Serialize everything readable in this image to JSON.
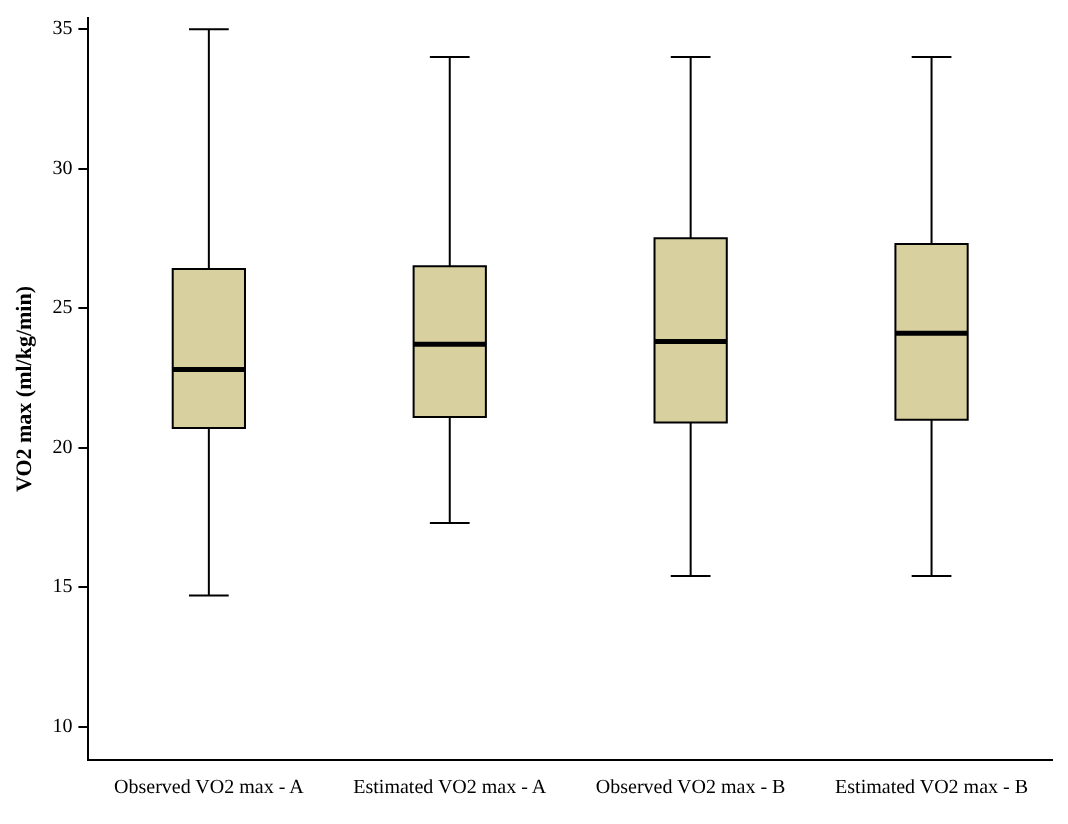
{
  "chart_data": {
    "type": "box",
    "ylabel": "VO2 max (ml/kg/min)",
    "categories": [
      "Observed VO2 max - A",
      "Estimated VO2 max - A",
      "Observed VO2 max - B",
      "Estimated VO2 max - B"
    ],
    "color": "#d8d09e",
    "boxes": [
      {
        "low": 14.7,
        "q1": 20.7,
        "median": 22.8,
        "q3": 26.4,
        "high": 35
      },
      {
        "low": 17.3,
        "q1": 21.1,
        "median": 23.7,
        "q3": 26.5,
        "high": 34
      },
      {
        "low": 15.4,
        "q1": 20.9,
        "median": 23.8,
        "q3": 27.5,
        "high": 34
      },
      {
        "low": 15.4,
        "q1": 21.0,
        "median": 24.1,
        "q3": 27.3,
        "high": 34
      }
    ],
    "ylim": [
      8.8,
      35.4
    ],
    "yticks": [
      10,
      15,
      20,
      25,
      30,
      35
    ],
    "grid": false
  }
}
